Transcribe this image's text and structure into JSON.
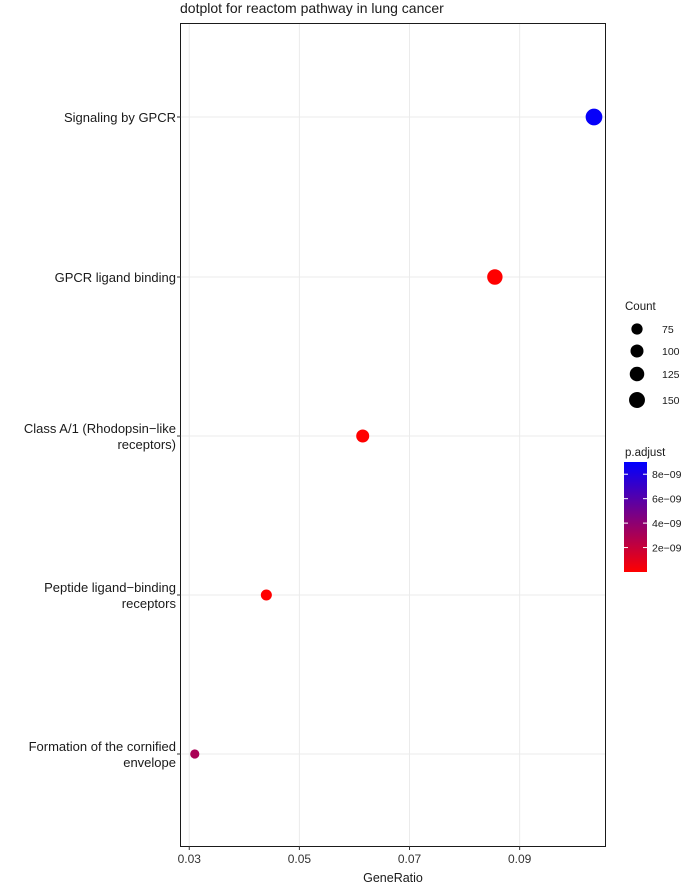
{
  "chart_data": {
    "type": "scatter",
    "title": "dotplot for reactom pathway in lung cancer",
    "xlabel": "GeneRatio",
    "ylabel": "",
    "xlim": [
      0.0285,
      0.1055
    ],
    "xticks": [
      0.03,
      0.05,
      0.07,
      0.09
    ],
    "xtick_labels": [
      "0.03",
      "0.05",
      "0.07",
      "0.09"
    ],
    "categories": [
      [
        "Signaling by GPCR"
      ],
      [
        "GPCR ligand binding"
      ],
      [
        "Class A/1 (Rhodopsin−like",
        "receptors)"
      ],
      [
        "Peptide ligand−binding",
        "receptors"
      ],
      [
        "Formation of the cornified",
        "envelope"
      ]
    ],
    "points": [
      {
        "pathway": "Signaling by GPCR",
        "gene_ratio": 0.1035,
        "count": 165,
        "p_adjust": 8.8e-09
      },
      {
        "pathway": "GPCR ligand binding",
        "gene_ratio": 0.0855,
        "count": 140,
        "p_adjust": 2e-12
      },
      {
        "pathway": "Class A/1 (Rhodopsin-like receptors)",
        "gene_ratio": 0.0615,
        "count": 100,
        "p_adjust": 2e-12
      },
      {
        "pathway": "Peptide ligand-binding receptors",
        "gene_ratio": 0.044,
        "count": 72,
        "p_adjust": 1e-12
      },
      {
        "pathway": "Formation of the cornified envelope",
        "gene_ratio": 0.031,
        "count": 50,
        "p_adjust": 3e-09
      }
    ],
    "size_legend": {
      "title": "Count",
      "values": [
        75,
        100,
        125,
        150
      ],
      "labels": [
        "75",
        "100",
        "125",
        "150"
      ]
    },
    "color_legend": {
      "title": "p.adjust",
      "min": 0,
      "max": 9e-09,
      "low_color": "#ff0000",
      "high_color": "#0000ff",
      "ticks": [
        8e-09,
        6e-09,
        4e-09,
        2e-09
      ],
      "tick_labels": [
        "8e−09",
        "6e−09",
        "4e−09",
        "2e−09"
      ]
    },
    "grid": true,
    "legend_position": "right"
  }
}
